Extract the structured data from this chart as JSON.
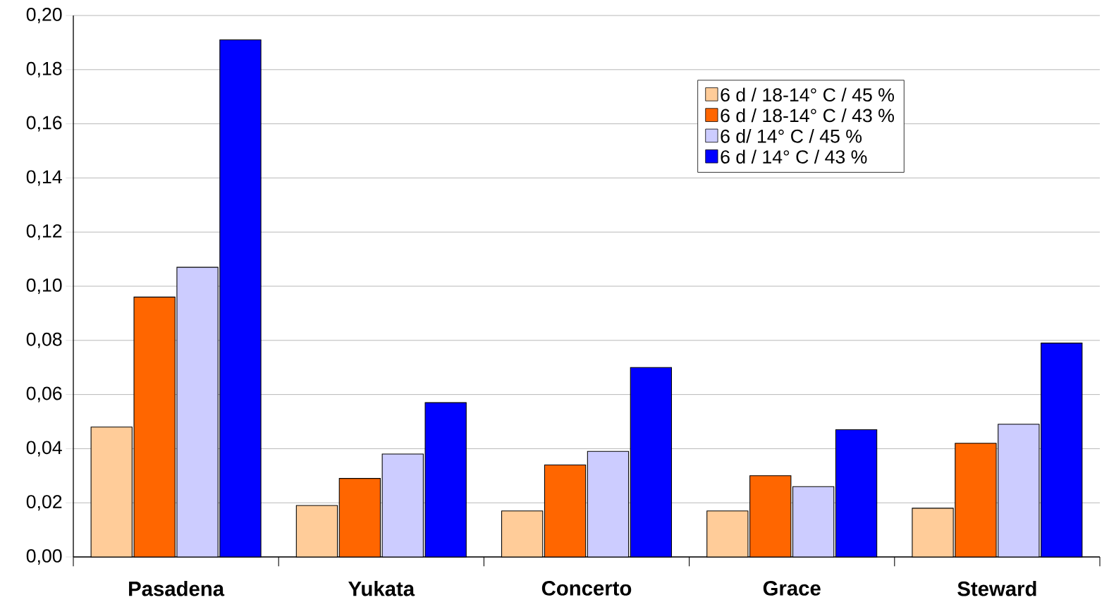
{
  "chart_data": {
    "type": "bar",
    "categories": [
      "Pasadena",
      "Yukata",
      "Concerto",
      "Grace",
      "Steward"
    ],
    "series": [
      {
        "name": "6 d / 18-14° C / 45 %",
        "color": "#ffcc99",
        "values": [
          0.048,
          0.019,
          0.017,
          0.017,
          0.018
        ]
      },
      {
        "name": "6 d / 18-14° C / 43 %",
        "color": "#ff6600",
        "values": [
          0.096,
          0.029,
          0.034,
          0.03,
          0.042
        ]
      },
      {
        "name": "6 d/ 14° C / 45 %",
        "color": "#ccccff",
        "values": [
          0.107,
          0.038,
          0.039,
          0.026,
          0.049
        ]
      },
      {
        "name": "6 d / 14° C / 43 %",
        "color": "#0000ff",
        "values": [
          0.191,
          0.057,
          0.07,
          0.047,
          0.079
        ]
      }
    ],
    "ylim": [
      0,
      0.2
    ],
    "yticks": [
      {
        "value": 0,
        "label": "0,00"
      },
      {
        "value": 0.02,
        "label": "0,02"
      },
      {
        "value": 0.04,
        "label": "0,04"
      },
      {
        "value": 0.06,
        "label": "0,06"
      },
      {
        "value": 0.08,
        "label": "0,08"
      },
      {
        "value": 0.1,
        "label": "0,10"
      },
      {
        "value": 0.12,
        "label": "0,12"
      },
      {
        "value": 0.14,
        "label": "0,14"
      },
      {
        "value": 0.16,
        "label": "0,16"
      },
      {
        "value": 0.18,
        "label": "0,18"
      },
      {
        "value": 0.2,
        "label": "0,20"
      }
    ],
    "grid": "y",
    "legend": "top right"
  }
}
